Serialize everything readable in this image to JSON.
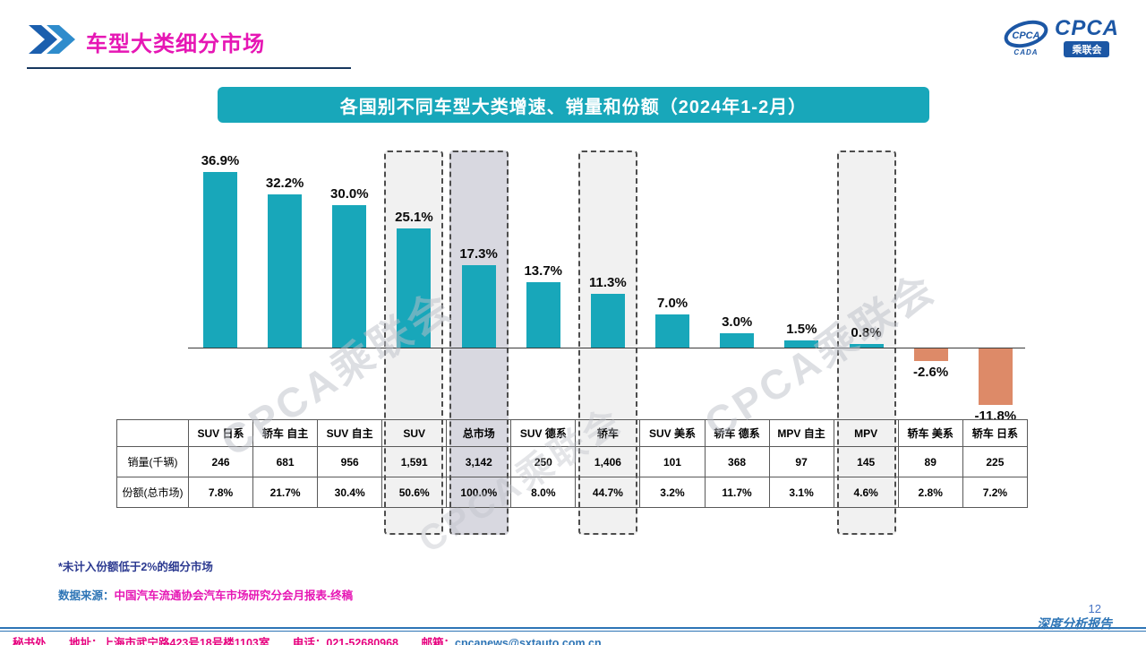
{
  "header": {
    "title": "车型大类细分市场",
    "logo_text": "CPCA",
    "logo_cada": "CADA",
    "logo_badge": "乘联会",
    "logo_inner": "CPCA"
  },
  "chart_data": {
    "type": "bar",
    "title": "各国别不同车型大类增速、销量和份额（2024年1-2月）",
    "categories": [
      "SUV 日系",
      "轿车 自主",
      "SUV 自主",
      "SUV",
      "总市场",
      "SUV 德系",
      "轿车",
      "SUV 美系",
      "轿车 德系",
      "MPV 自主",
      "MPV",
      "轿车 美系",
      "轿车 日系"
    ],
    "values": [
      36.9,
      32.2,
      30.0,
      25.1,
      17.3,
      13.7,
      11.3,
      7.0,
      3.0,
      1.5,
      0.8,
      -2.6,
      -11.8
    ],
    "labels": [
      "36.9%",
      "32.2%",
      "30.0%",
      "25.1%",
      "17.3%",
      "13.7%",
      "11.3%",
      "7.0%",
      "3.0%",
      "1.5%",
      "0.8%",
      "-2.6%",
      "-11.8%"
    ],
    "xlabel": "",
    "ylabel": "",
    "ylim": [
      -15,
      40
    ],
    "grid": false,
    "legend": "none",
    "positive_color": "#18a7ba",
    "negative_color": "#dd8a68",
    "highlighted": [
      3,
      4,
      6,
      10
    ],
    "highlight_fill": [
      "#f1f1f1",
      "#d8d8e0",
      "#f1f1f1",
      "#f1f1f1"
    ]
  },
  "table": {
    "row_labels": [
      "销量(千辆)",
      "份额(总市场)"
    ],
    "columns": [
      "SUV 日系",
      "轿车 自主",
      "SUV 自主",
      "SUV",
      "总市场",
      "SUV 德系",
      "轿车",
      "SUV 美系",
      "轿车 德系",
      "MPV 自主",
      "MPV",
      "轿车 美系",
      "轿车 日系"
    ],
    "sales": [
      "246",
      "681",
      "956",
      "1,591",
      "3,142",
      "250",
      "1,406",
      "101",
      "368",
      "97",
      "145",
      "89",
      "225"
    ],
    "share": [
      "7.8%",
      "21.7%",
      "30.4%",
      "50.6%",
      "100.0%",
      "8.0%",
      "44.7%",
      "3.2%",
      "11.7%",
      "3.1%",
      "4.6%",
      "2.8%",
      "7.2%"
    ]
  },
  "notes": {
    "footnote": "*未计入份额低于2%的细分市场",
    "source_label": "数据来源：",
    "source_text": "中国汽车流通协会汽车市场研究分会月报表-终稿"
  },
  "footer": {
    "page_number": "12",
    "report_label": "深度分析报告",
    "dept": "秘书处",
    "address": "地址：上海市武宁路423号18号楼1103室",
    "phone": "电话：021-52680968",
    "email_label": "邮箱：",
    "email": "cpcanews@sxtauto.com.cn"
  },
  "watermark": "CPCA乘联会"
}
